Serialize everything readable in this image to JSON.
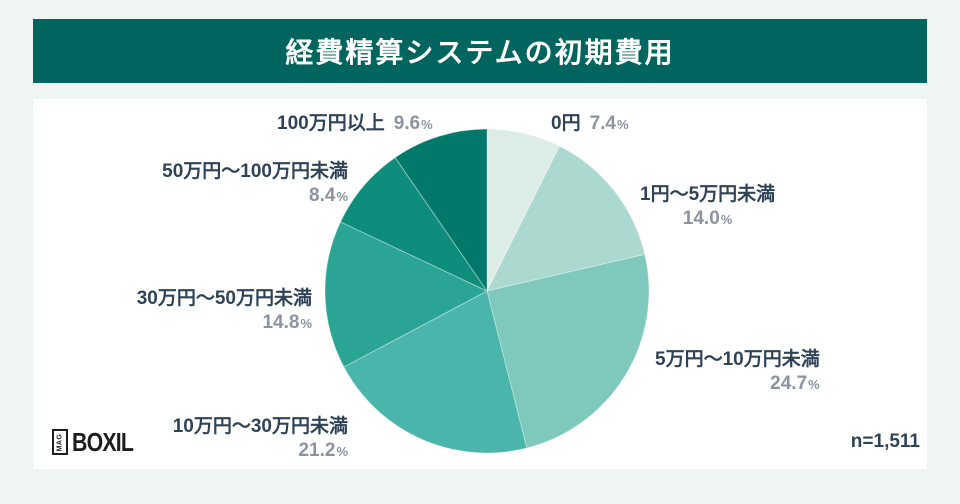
{
  "header": {
    "title": "経費精算システムの初期費用"
  },
  "footer": {
    "logo_badge": "MAG",
    "logo_text": "BOXIL",
    "sample_size": "n=1,511"
  },
  "chart_data": {
    "type": "pie",
    "title": "経費精算システムの初期費用",
    "categories": [
      "0円",
      "1円〜5万円未満",
      "5万円〜10万円未満",
      "10万円〜30万円未満",
      "30万円〜50万円未満",
      "50万円〜100万円未満",
      "100万円以上"
    ],
    "values": [
      7.4,
      14.0,
      24.7,
      21.2,
      14.8,
      8.4,
      9.6
    ],
    "pct_unit": "%",
    "sample_size": "n=1,511",
    "start_angle_deg": 0,
    "direction": "clockwise",
    "legend_position": "around-labels",
    "colors": [
      "#dcede8",
      "#abd8cf",
      "#7ec9bc",
      "#49b5ab",
      "#2aa493",
      "#0f8d7b",
      "#00796a"
    ],
    "labels": [
      {
        "name": "0円",
        "pct": "7.4"
      },
      {
        "name": "1円〜5万円未満",
        "pct": "14.0"
      },
      {
        "name": "5万円〜10万円未満",
        "pct": "24.7"
      },
      {
        "name": "10万円〜30万円未満",
        "pct": "21.2"
      },
      {
        "name": "30万円〜50万円未満",
        "pct": "14.8"
      },
      {
        "name": "50万円〜100万円未満",
        "pct": "8.4"
      },
      {
        "name": "100万円以上",
        "pct": "9.6"
      }
    ]
  }
}
